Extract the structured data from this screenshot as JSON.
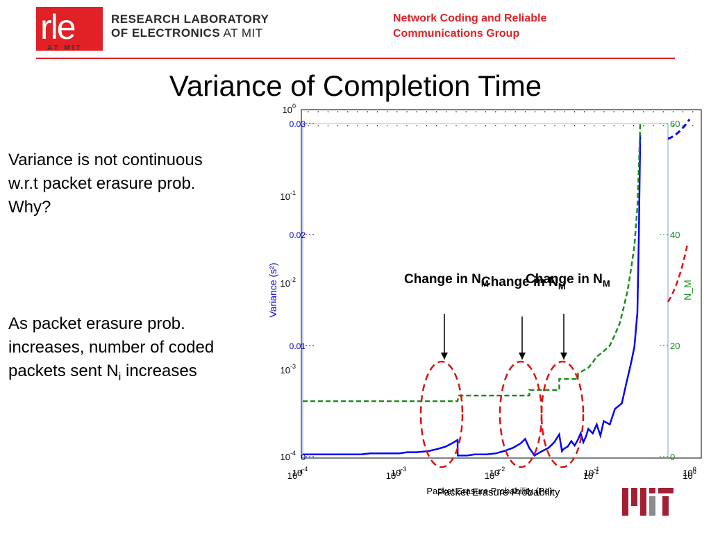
{
  "header": {
    "logo_text": "rle",
    "logo_subtext": "AT MIT",
    "lab_line1": "RESEARCH LABORATORY",
    "lab_line2_bold": "OF ELECTRONICS",
    "lab_line2_rest": " AT MIT",
    "group_line1": "Network Coding and Reliable",
    "group_line2": "Communications Group"
  },
  "slide": {
    "title": "Variance of Completion Time",
    "text1_lines": [
      "Variance is not continuous",
      "w.r.t packet erasure prob.",
      "Why?"
    ],
    "text2_lines": [
      "As packet erasure prob.",
      "increases, number of coded"
    ],
    "text2_line3_pre": "packets sent N",
    "text2_line3_sub": "i",
    "text2_line3_post": " increases"
  },
  "footer": {
    "logo": "MIT"
  },
  "colors": {
    "variance": "#0000ff",
    "nm": "#1a8c1a",
    "circle": "#dd1111",
    "title_red": "#e12126"
  },
  "chart_data": {
    "type": "line",
    "xlabel": "Packet Erasure Probability",
    "xlabel_overlay": "Packet Erasure Probability (Pe)",
    "ylabel_left": "Variance (s²)",
    "ylabel_right": "N_M",
    "x_scale": "log",
    "xlim": [
      0.0001,
      0.6
    ],
    "ylim_left": [
      0,
      0.03
    ],
    "ylim_right": [
      0,
      60
    ],
    "left_ticks": [
      {
        "v": 0,
        "label": "0"
      },
      {
        "v": 0.01,
        "label": "0.01"
      },
      {
        "v": 0.02,
        "label": "0.02"
      },
      {
        "v": 0.03,
        "label": "0.03"
      }
    ],
    "right_ticks": [
      {
        "v": 0,
        "label": "0"
      },
      {
        "v": 20,
        "label": "20"
      },
      {
        "v": 40,
        "label": "40"
      },
      {
        "v": 60,
        "label": "60"
      }
    ],
    "log_ticks_left": [
      {
        "base": "10",
        "exp": "0"
      },
      {
        "base": "10",
        "exp": "-1"
      },
      {
        "base": "10",
        "exp": "-2"
      },
      {
        "base": "10",
        "exp": "-3"
      },
      {
        "base": "10",
        "exp": "-4"
      }
    ],
    "log_ticks_x": [
      {
        "base": "10",
        "exp": "-4"
      },
      {
        "base": "10",
        "exp": "-3"
      },
      {
        "base": "10",
        "exp": "-2"
      },
      {
        "base": "10",
        "exp": "-1"
      },
      {
        "base": "10",
        "exp": "0"
      }
    ],
    "annotations": [
      {
        "text": "Change in N",
        "sub": "M"
      },
      {
        "text": "Change in N",
        "sub": "M"
      },
      {
        "text": "Change in N",
        "sub": "M"
      }
    ],
    "series": [
      {
        "name": "Variance",
        "axis": "left",
        "x": [
          0.0001,
          0.00012,
          0.00015,
          0.0002,
          0.00025,
          0.0003,
          0.0004,
          0.0005,
          0.0006,
          0.0008,
          0.001,
          0.0012,
          0.0015,
          0.002,
          0.0025,
          0.003,
          0.0035,
          0.004,
          0.00401,
          0.0045,
          0.005,
          0.006,
          0.007,
          0.008,
          0.01,
          0.012,
          0.015,
          0.018,
          0.02,
          0.022,
          0.025,
          0.026,
          0.03,
          0.035,
          0.04,
          0.045,
          0.048,
          0.05,
          0.055,
          0.06,
          0.065,
          0.07,
          0.075,
          0.08,
          0.085,
          0.09,
          0.1,
          0.11,
          0.12,
          0.13,
          0.15,
          0.17,
          0.2,
          0.22,
          0.25,
          0.27,
          0.29,
          0.3,
          0.31
        ],
        "values": [
          0.0002,
          0.0002,
          0.0002,
          0.0002,
          0.0002,
          0.0002,
          0.0002,
          0.0003,
          0.0003,
          0.0003,
          0.0003,
          0.0004,
          0.0004,
          0.0005,
          0.0007,
          0.0009,
          0.0012,
          0.0015,
          0.0001,
          0.0001,
          0.0001,
          0.0002,
          0.0002,
          0.0002,
          0.0003,
          0.0005,
          0.0008,
          0.0012,
          0.0016,
          0.0008,
          0.0001,
          0.0002,
          0.0005,
          0.0008,
          0.0013,
          0.002,
          0.0005,
          0.0007,
          0.0009,
          0.0014,
          0.001,
          0.0015,
          0.0021,
          0.0013,
          0.0018,
          0.0025,
          0.0021,
          0.0029,
          0.0019,
          0.0032,
          0.0029,
          0.0043,
          0.0048,
          0.0064,
          0.0085,
          0.0099,
          0.013,
          0.02,
          0.029
        ]
      },
      {
        "name": "N_M",
        "axis": "right",
        "x": [
          0.0001,
          0.004,
          0.0041,
          0.022,
          0.0221,
          0.045,
          0.0451,
          0.07,
          0.0705,
          0.09,
          0.1,
          0.11,
          0.13,
          0.15,
          0.17,
          0.19,
          0.21,
          0.23,
          0.25,
          0.27,
          0.29,
          0.3,
          0.31
        ],
        "values": [
          10,
          10,
          11,
          11,
          12,
          12,
          14,
          14,
          15,
          16,
          17,
          18,
          19,
          20,
          22,
          24,
          27,
          30,
          34,
          38,
          45,
          52,
          60
        ]
      }
    ]
  }
}
